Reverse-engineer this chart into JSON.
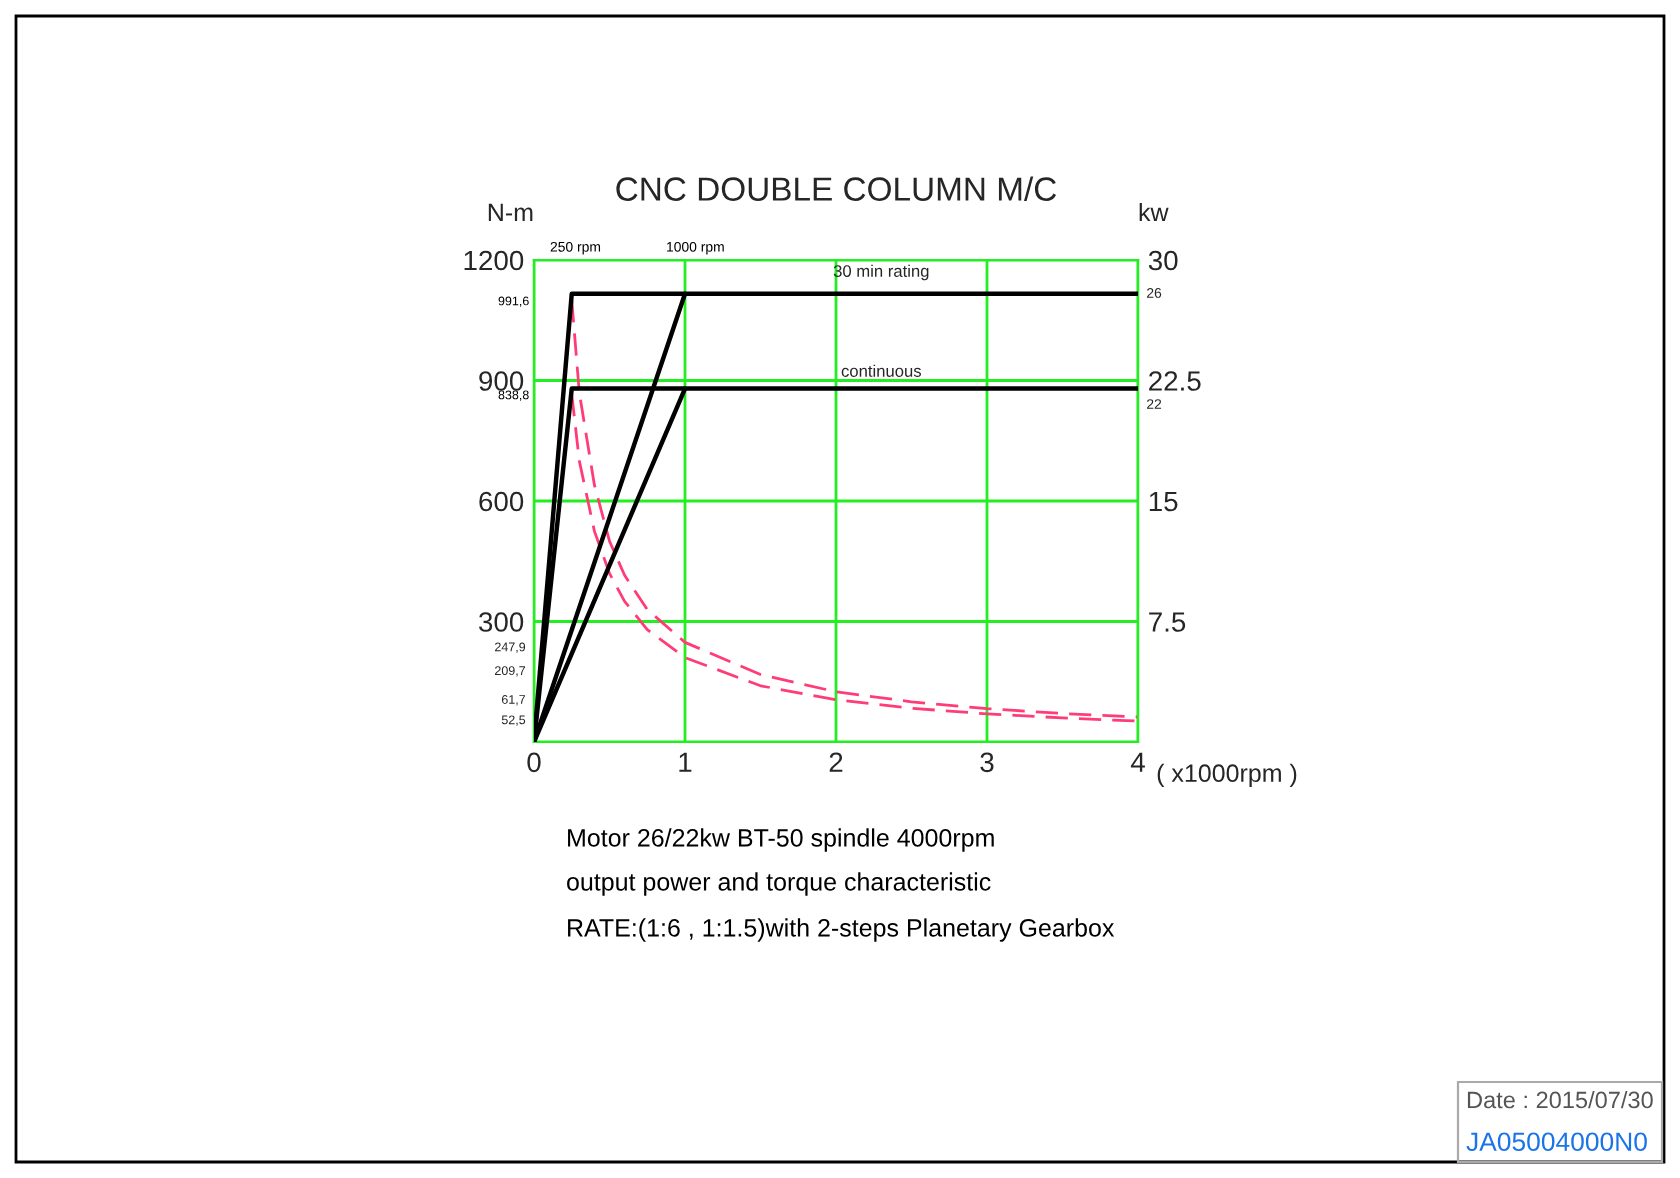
{
  "chart_data": {
    "type": "line",
    "title": "CNC DOUBLE COLUMN M/C",
    "xlabel": "( x1000rpm )",
    "ylabel": "N-m",
    "y2label": "kw",
    "xlim": [
      0,
      4
    ],
    "xticks": [
      0,
      1,
      2,
      3,
      4
    ],
    "ylim": [
      0,
      1200
    ],
    "yticks": [
      {
        "value": 0,
        "label": null
      },
      300,
      600,
      900,
      1200
    ],
    "y2lim": [
      0,
      30
    ],
    "y2ticks": [
      {
        "value": 0,
        "label": null
      },
      7.5,
      15,
      22.5,
      30
    ],
    "grid": true,
    "marker": "none",
    "series": [
      {
        "color": "#000000",
        "axis": "y2",
        "line_style": "solid",
        "x": [
          0,
          0.25,
          4
        ],
        "values": [
          0,
          27.9,
          27.9
        ]
      },
      {
        "color": "#000000",
        "axis": "y2",
        "line_style": "solid",
        "x": [
          0,
          1
        ],
        "values": [
          0,
          27.9
        ]
      },
      {
        "color": "#000000",
        "axis": "y2",
        "line_style": "solid",
        "x": [
          0,
          0.25,
          4
        ],
        "values": [
          0,
          22.0,
          22.0
        ]
      },
      {
        "color": "#000000",
        "axis": "y2",
        "line_style": "solid",
        "x": [
          0,
          1
        ],
        "values": [
          0,
          22.0
        ]
      },
      {
        "color": "#ff3c78",
        "line_style": "dashed",
        "x": [
          0.25,
          0.3,
          0.4,
          0.5,
          0.6,
          0.75,
          1,
          1.5,
          2,
          2.5,
          3,
          3.5,
          4
        ],
        "values": [
          1100,
          870,
          640,
          500,
          415,
          330,
          248,
          168,
          125,
          100,
          83,
          71,
          62
        ]
      },
      {
        "color": "#ff3c78",
        "line_style": "dashed",
        "x": [
          0.25,
          0.3,
          0.4,
          0.5,
          0.6,
          0.75,
          1,
          1.5,
          2,
          2.5,
          3,
          3.5,
          4
        ],
        "values": [
          866,
          700,
          525,
          420,
          350,
          280,
          210,
          140,
          105,
          84,
          70,
          60,
          52
        ]
      }
    ],
    "annotations": [
      "250 rpm",
      "1000 rpm",
      {
        "text": "30 min rating",
        "x": 2.3,
        "y": 1115
      },
      {
        "text": "continuous",
        "x": 2.3,
        "y": 880
      },
      "991,6",
      "838,8",
      {
        "text": "247,9",
        "x": 0,
        "y": 247.9
      },
      {
        "text": "209,7",
        "x": 0,
        "y": 209.7
      },
      {
        "text": "61,7",
        "x": 0,
        "y": 61.7
      },
      {
        "text": "52,5",
        "x": 0,
        "y": 52.5
      },
      {
        "text": "26",
        "x": 4,
        "y": 1115
      },
      {
        "text": "22",
        "x": 4,
        "y": 866
      },
      "Motor 26/22kw BT-50 spindle 4000rpm",
      "output power and torque characteristic",
      "RATE:(1:6 , 1:1.5)with 2-steps Planetary Gearbox",
      "Date : 2015/07/30",
      "JA05004000N0"
    ]
  }
}
